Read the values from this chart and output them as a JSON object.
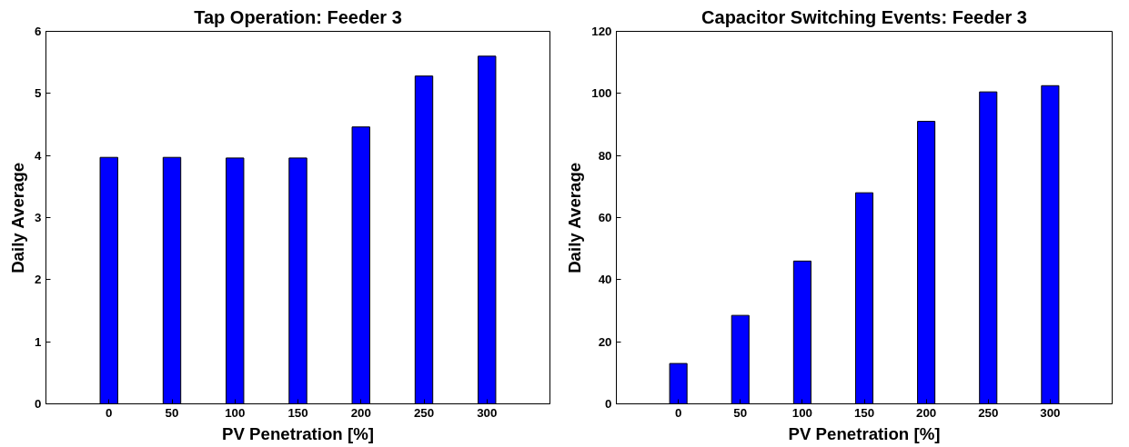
{
  "chart_data": [
    {
      "type": "bar",
      "title": "Tap Operation: Feeder 3",
      "xlabel": "PV Penetration [%]",
      "ylabel": "Daily Average",
      "x": [
        0,
        50,
        100,
        150,
        200,
        250,
        300
      ],
      "series": [
        {
          "color": "#0000ff",
          "values": [
            3.97,
            3.97,
            3.96,
            3.96,
            4.46,
            5.28,
            5.6
          ]
        }
      ],
      "xlim": [
        -50,
        350
      ],
      "xticks": [
        0,
        50,
        100,
        150,
        200,
        250,
        300
      ],
      "ylim": [
        0,
        6
      ],
      "yticks": [
        0,
        1,
        2,
        3,
        4,
        5,
        6
      ],
      "grid": false
    },
    {
      "type": "bar",
      "title": "Capacitor Switching Events: Feeder 3",
      "xlabel": "PV Penetration [%]",
      "ylabel": "Daily Average",
      "x": [
        0,
        50,
        100,
        150,
        200,
        250,
        300
      ],
      "series": [
        {
          "color": "#0000ff",
          "values": [
            13,
            28.5,
            46,
            68,
            91,
            100.5,
            102.5
          ]
        }
      ],
      "xlim": [
        -50,
        350
      ],
      "xticks": [
        0,
        50,
        100,
        150,
        200,
        250,
        300
      ],
      "ylim": [
        0,
        120
      ],
      "yticks": [
        0,
        20,
        40,
        60,
        80,
        100,
        120
      ],
      "grid": false
    }
  ]
}
